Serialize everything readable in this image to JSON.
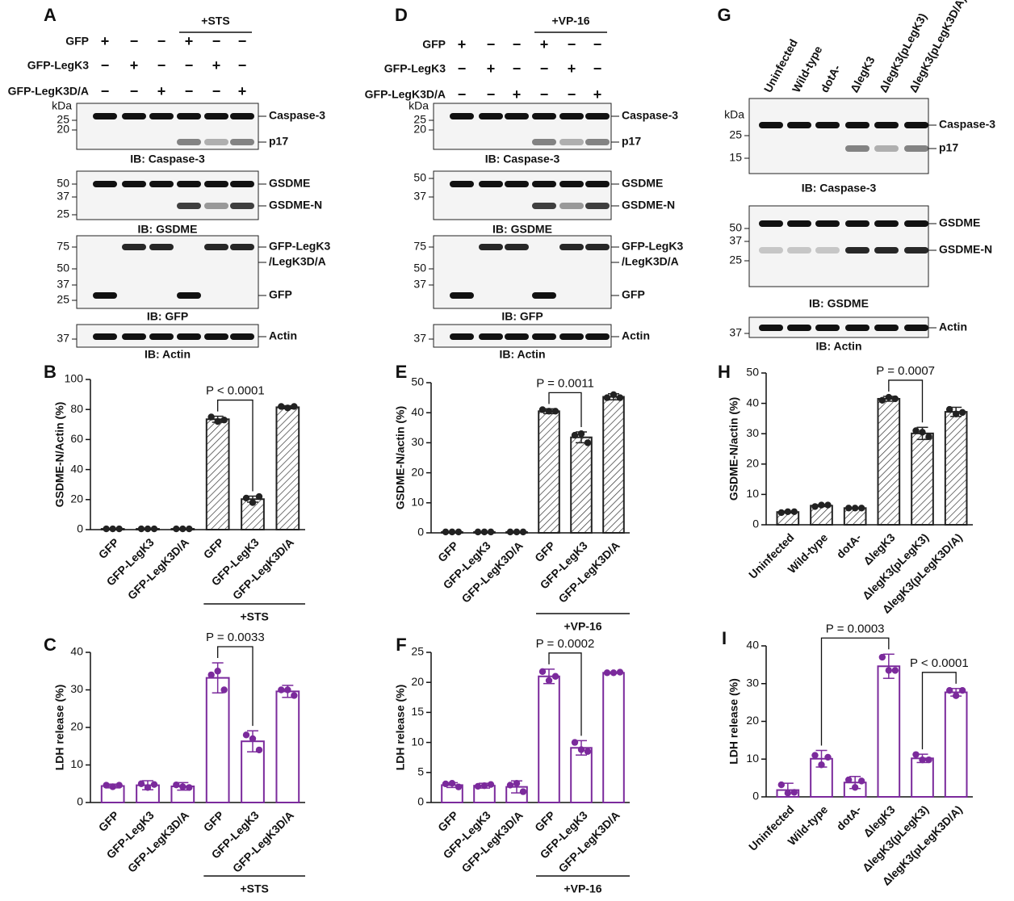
{
  "blots": [
    {
      "letter": "A",
      "treatment": "+STS",
      "conditions": [
        {
          "label": "GFP",
          "signs": [
            "+",
            "−",
            "−",
            "+",
            "−",
            "−"
          ]
        },
        {
          "label": "GFP-LegK3",
          "signs": [
            "−",
            "+",
            "−",
            "−",
            "+",
            "−"
          ]
        },
        {
          "label": "GFP-LegK3D/A",
          "signs": [
            "−",
            "−",
            "+",
            "−",
            "−",
            "+"
          ]
        }
      ],
      "gels": [
        {
          "kda": "kDa",
          "markers": [
            "25",
            "20"
          ],
          "bands": [
            "Caspase-3",
            "p17"
          ],
          "ib": "IB: Caspase-3"
        },
        {
          "markers": [
            "50",
            "37",
            "25"
          ],
          "bands": [
            "GSDME",
            "GSDME-N"
          ],
          "ib": "IB: GSDME"
        },
        {
          "markers": [
            "75",
            "50",
            "37",
            "25"
          ],
          "bands": [
            "GFP-LegK3",
            "/LegK3D/A",
            "GFP"
          ],
          "ib": "IB: GFP"
        },
        {
          "markers": [
            "37"
          ],
          "bands": [
            "Actin"
          ],
          "ib": "IB: Actin"
        }
      ]
    },
    {
      "letter": "D",
      "treatment": "+VP-16",
      "conditions": [
        {
          "label": "GFP",
          "signs": [
            "+",
            "−",
            "−",
            "+",
            "−",
            "−"
          ]
        },
        {
          "label": "GFP-LegK3",
          "signs": [
            "−",
            "+",
            "−",
            "−",
            "+",
            "−"
          ]
        },
        {
          "label": "GFP-LegK3D/A",
          "signs": [
            "−",
            "−",
            "+",
            "−",
            "−",
            "+"
          ]
        }
      ],
      "gels": [
        {
          "kda": "kDa",
          "markers": [
            "25",
            "20"
          ],
          "bands": [
            "Caspase-3",
            "p17"
          ],
          "ib": "IB: Caspase-3"
        },
        {
          "markers": [
            "50",
            "37"
          ],
          "bands": [
            "GSDME",
            "GSDME-N"
          ],
          "ib": "IB: GSDME"
        },
        {
          "markers": [
            "75",
            "50",
            "37"
          ],
          "bands": [
            "GFP-LegK3",
            "/LegK3D/A",
            "GFP"
          ],
          "ib": "IB: GFP"
        },
        {
          "markers": [
            "37"
          ],
          "bands": [
            "Actin"
          ],
          "ib": "IB: Actin"
        }
      ]
    },
    {
      "letter": "G",
      "lanes": [
        "Uninfected",
        "Wild-type",
        "dotA-",
        "ΔlegK3",
        "ΔlegK3(pLegK3)",
        "ΔlegK3(pLegK3D/A)"
      ],
      "gels": [
        {
          "kda": "kDa",
          "markers": [
            "25",
            "15"
          ],
          "bands": [
            "Caspase-3",
            "p17"
          ],
          "ib": "IB: Caspase-3"
        },
        {
          "markers": [
            "50",
            "37",
            "25"
          ],
          "bands": [
            "GSDME",
            "GSDME-N"
          ],
          "ib": "IB: GSDME"
        },
        {
          "markers": [
            "37"
          ],
          "bands": [
            "Actin"
          ],
          "ib": "IB: Actin"
        }
      ]
    }
  ],
  "chart_data": [
    {
      "type": "bar",
      "panel": "B",
      "ylabel": "GSDME-N/Actin (%)",
      "style": "hatched",
      "color": "#222222",
      "categories": [
        "GFP",
        "GFP-LegK3",
        "GFP-LegK3D/A",
        "GFP",
        "GFP-LegK3",
        "GFP-LegK3D/A"
      ],
      "values": [
        0.5,
        0.5,
        0.5,
        73.5,
        20.3,
        81.5
      ],
      "errors": [
        0,
        0,
        0,
        2,
        2,
        1
      ],
      "points": [
        [
          0.5,
          0.5,
          0.5
        ],
        [
          0.5,
          0.5,
          0.5
        ],
        [
          0.5,
          0.5,
          0.5
        ],
        [
          75,
          72,
          73
        ],
        [
          21,
          18,
          22
        ],
        [
          82,
          81,
          82
        ]
      ],
      "ylim": [
        0,
        100
      ],
      "yticks": [
        0,
        20,
        40,
        60,
        80,
        100
      ],
      "annotations": [
        "P < 0.0001"
      ],
      "group_label": "+STS"
    },
    {
      "type": "bar",
      "panel": "C",
      "ylabel": "LDH release (%)",
      "style": "open",
      "color": "#7b2a9c",
      "categories": [
        "GFP",
        "GFP-LegK3",
        "GFP-LegK3D/A",
        "GFP",
        "GFP-LegK3",
        "GFP-LegK3D/A"
      ],
      "values": [
        4.4,
        4.6,
        4.3,
        33.2,
        16.3,
        29.6
      ],
      "errors": [
        0.5,
        1.2,
        1,
        4,
        2.8,
        1.6
      ],
      "points": [
        [
          4.6,
          4.2,
          4.6
        ],
        [
          5,
          4,
          4.8
        ],
        [
          4.7,
          4.2,
          4
        ],
        [
          34,
          35,
          30
        ],
        [
          18,
          17,
          14
        ],
        [
          30,
          30,
          28.5
        ]
      ],
      "ylim": [
        0,
        40
      ],
      "yticks": [
        0,
        10,
        20,
        30,
        40
      ],
      "annotations": [
        "P = 0.0033"
      ],
      "group_label": "+STS"
    },
    {
      "type": "bar",
      "panel": "E",
      "ylabel": "GSDME-N/actin (%)",
      "style": "hatched",
      "color": "#222222",
      "categories": [
        "GFP",
        "GFP-LegK3",
        "GFP-LegK3D/A",
        "GFP",
        "GFP-LegK3",
        "GFP-LegK3D/A"
      ],
      "values": [
        0.3,
        0.3,
        0.3,
        40.5,
        31.8,
        45.3
      ],
      "errors": [
        0,
        0,
        0,
        0.8,
        1.8,
        1
      ],
      "points": [
        [
          0.3,
          0.3,
          0.3
        ],
        [
          0.3,
          0.3,
          0.3
        ],
        [
          0.3,
          0.3,
          0.3
        ],
        [
          41,
          40.5,
          40.5
        ],
        [
          32.5,
          33,
          30
        ],
        [
          45,
          46,
          45
        ]
      ],
      "ylim": [
        0,
        50
      ],
      "yticks": [
        0,
        10,
        20,
        30,
        40,
        50
      ],
      "annotations": [
        "P = 0.0011"
      ],
      "group_label": "+VP-16"
    },
    {
      "type": "bar",
      "panel": "F",
      "ylabel": "LDH release (%)",
      "style": "open",
      "color": "#7b2a9c",
      "categories": [
        "GFP",
        "GFP-LegK3",
        "GFP-LegK3D/A",
        "GFP",
        "GFP-LegK3",
        "GFP-LegK3D/A"
      ],
      "values": [
        2.9,
        2.8,
        2.6,
        21,
        9.1,
        21.6
      ],
      "errors": [
        0.4,
        0.4,
        1,
        1.2,
        1.2,
        0.1
      ],
      "points": [
        [
          3.1,
          3.2,
          2.6
        ],
        [
          2.7,
          2.8,
          3
        ],
        [
          2.9,
          3.2,
          1.8
        ],
        [
          21.8,
          20.3,
          21
        ],
        [
          10,
          8.8,
          8.5
        ],
        [
          21.6,
          21.6,
          21.7
        ]
      ],
      "ylim": [
        0,
        25
      ],
      "yticks": [
        0,
        5,
        10,
        15,
        20,
        25
      ],
      "annotations": [
        "P = 0.0002"
      ],
      "group_label": "+VP-16"
    },
    {
      "type": "bar",
      "panel": "H",
      "ylabel": "GSDME-N/actin (%)",
      "style": "hatched",
      "color": "#222222",
      "categories": [
        "Uninfected",
        "Wild-type",
        "dotA-",
        "ΔlegK3",
        "ΔlegK3(pLegK3)",
        "ΔlegK3(pLegK3D/A)"
      ],
      "values": [
        4.2,
        6.3,
        5.5,
        41.5,
        30.1,
        37.2
      ],
      "errors": [
        0.3,
        0.3,
        0.1,
        0.8,
        2,
        1.5
      ],
      "points": [
        [
          4,
          4.3,
          4.3
        ],
        [
          6,
          6.5,
          6.5
        ],
        [
          5.5,
          5.5,
          5.5
        ],
        [
          41,
          42,
          41.5
        ],
        [
          31,
          30.5,
          29
        ],
        [
          38,
          36.5,
          37
        ]
      ],
      "ylim": [
        0,
        50
      ],
      "yticks": [
        0,
        10,
        20,
        30,
        40,
        50
      ],
      "annotations": [
        "P = 0.0007"
      ]
    },
    {
      "type": "bar",
      "panel": "I",
      "ylabel": "LDH release (%)",
      "style": "open",
      "color": "#7b2a9c",
      "categories": [
        "Uninfected",
        "Wild-type",
        "dotA-",
        "ΔlegK3",
        "ΔlegK3(pLegK3)",
        "ΔlegK3(pLegK3D/A)"
      ],
      "values": [
        1.8,
        10.1,
        3.8,
        34.6,
        10.2,
        27.7
      ],
      "errors": [
        1.8,
        2.2,
        1.6,
        3.2,
        1.1,
        1
      ],
      "points": [
        [
          3.2,
          1,
          1.2
        ],
        [
          11,
          8.5,
          10.5
        ],
        [
          4.5,
          2.5,
          4.2
        ],
        [
          37,
          33.5,
          33.5
        ],
        [
          11.2,
          9.8,
          9.8
        ],
        [
          28.2,
          26.8,
          28.2
        ]
      ],
      "ylim": [
        0,
        40
      ],
      "yticks": [
        0,
        10,
        20,
        30,
        40
      ],
      "annotations": [
        "P = 0.0003",
        "P < 0.0001"
      ]
    }
  ]
}
